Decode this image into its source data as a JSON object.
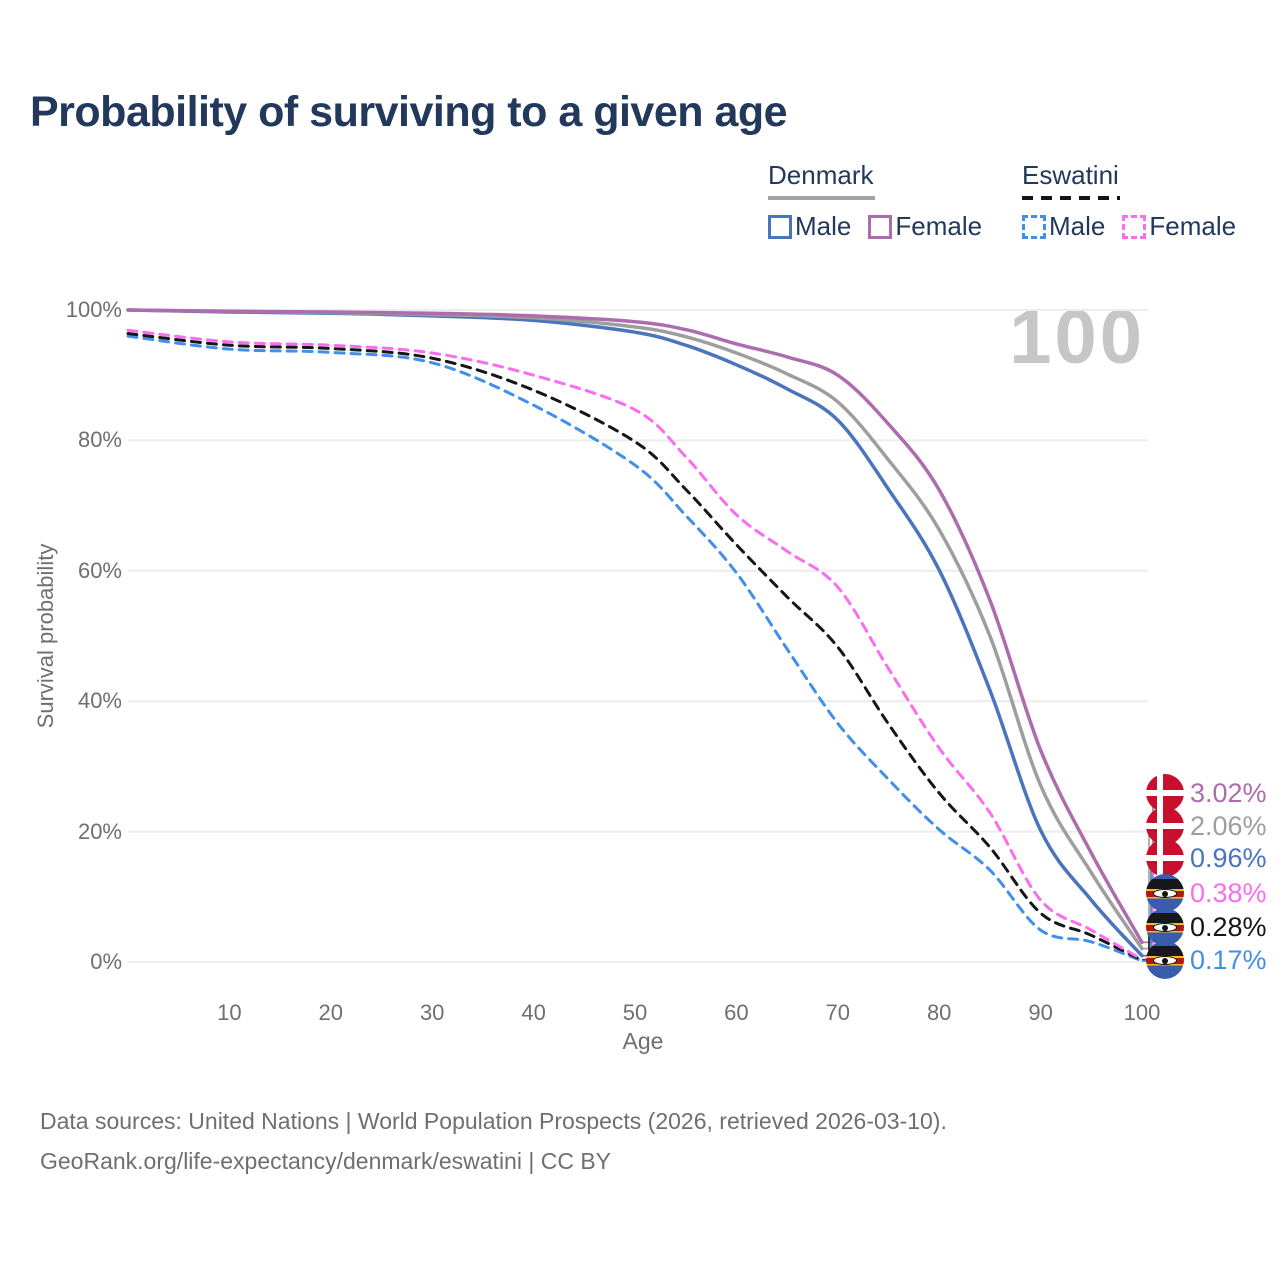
{
  "title": "Probability of surviving to a given age",
  "watermark_age": "100",
  "legend": {
    "groups": [
      {
        "label": "Denmark",
        "line_style": "solid",
        "underline_color": "#a3a3a3",
        "items": [
          {
            "label": "Male",
            "color": "#4a74bc",
            "dashed": false
          },
          {
            "label": "Female",
            "color": "#ad6cae",
            "dashed": false
          }
        ]
      },
      {
        "label": "Eswatini",
        "line_style": "dashed",
        "underline_color": "#141414",
        "items": [
          {
            "label": "Male",
            "color": "#418fea",
            "dashed": true
          },
          {
            "label": "Female",
            "color": "#fb6df0",
            "dashed": true
          }
        ]
      }
    ]
  },
  "chart_data": {
    "type": "line",
    "title": "Probability of surviving to a given age",
    "xlabel": "Age",
    "ylabel": "Survival probability",
    "xlim": [
      0,
      100
    ],
    "ylim": [
      0,
      100
    ],
    "grid": "horizontal",
    "legend_position": "top-right",
    "x_ticks": [
      {
        "age": 10,
        "label": "10"
      },
      {
        "age": 20,
        "label": "20"
      },
      {
        "age": 30,
        "label": "30"
      },
      {
        "age": 40,
        "label": "40"
      },
      {
        "age": 50,
        "label": "50"
      },
      {
        "age": 60,
        "label": "60"
      },
      {
        "age": 70,
        "label": "70"
      },
      {
        "age": 80,
        "label": "80"
      },
      {
        "age": 90,
        "label": "90"
      },
      {
        "age": 100,
        "label": "100"
      }
    ],
    "y_ticks": [
      {
        "pct": 0,
        "label": "0%"
      },
      {
        "pct": 20,
        "label": "20%"
      },
      {
        "pct": 40,
        "label": "40%"
      },
      {
        "pct": 60,
        "label": "60%"
      },
      {
        "pct": 80,
        "label": "80%"
      },
      {
        "pct": 100,
        "label": "100%"
      }
    ],
    "x": [
      0,
      10,
      20,
      30,
      40,
      50,
      55,
      60,
      65,
      70,
      75,
      80,
      85,
      90,
      95,
      100
    ],
    "series": [
      {
        "name": "Denmark Female",
        "country": "Denmark",
        "sex": "Female",
        "color": "#ad6cae",
        "dashed": false,
        "end_label": "3.02%",
        "flag": "denmark",
        "values": [
          100,
          99.8,
          99.7,
          99.5,
          99.1,
          98.2,
          97.0,
          94.8,
          92.8,
          90.0,
          82.5,
          72.4,
          55.5,
          32.5,
          16.7,
          3.02
        ]
      },
      {
        "name": "Denmark Both sexes",
        "country": "Denmark",
        "sex": "Both",
        "color": "#9e9e9e",
        "dashed": false,
        "end_label": "2.06%",
        "flag": "denmark",
        "values": [
          100,
          99.8,
          99.6,
          99.3,
          98.8,
          97.4,
          95.9,
          93.4,
          90.2,
          85.9,
          77.0,
          66.3,
          50.0,
          27.1,
          13.7,
          2.06
        ]
      },
      {
        "name": "Denmark Male",
        "country": "Denmark",
        "sex": "Male",
        "color": "#4a74bc",
        "dashed": false,
        "end_label": "0.96%",
        "flag": "denmark",
        "values": [
          100,
          99.7,
          99.5,
          99.1,
          98.4,
          96.6,
          94.6,
          91.6,
          87.9,
          83.1,
          72.5,
          60.1,
          41.7,
          20.2,
          9.5,
          0.96
        ]
      },
      {
        "name": "Eswatini Female",
        "country": "Eswatini",
        "sex": "Female",
        "color": "#fb6df0",
        "dashed": true,
        "end_label": "0.38%",
        "flag": "eswatini",
        "values": [
          96.9,
          95.1,
          94.6,
          93.4,
          90.0,
          84.7,
          77.5,
          68.6,
          63.0,
          57.5,
          45.0,
          32.8,
          22.9,
          9.5,
          4.9,
          0.38
        ]
      },
      {
        "name": "Eswatini Both sexes",
        "country": "Eswatini",
        "sex": "Both",
        "color": "#161616",
        "dashed": true,
        "end_label": "0.28%",
        "flag": "eswatini",
        "values": [
          96.4,
          94.6,
          94.1,
          92.6,
          87.7,
          79.8,
          72.5,
          64.0,
          56.0,
          48.3,
          36.5,
          25.9,
          17.6,
          7.5,
          4.1,
          0.28
        ]
      },
      {
        "name": "Eswatini Male",
        "country": "Eswatini",
        "sex": "Male",
        "color": "#418fea",
        "dashed": true,
        "end_label": "0.17%",
        "flag": "eswatini",
        "values": [
          96.0,
          94.0,
          93.5,
          91.9,
          85.4,
          76.2,
          68.5,
          59.7,
          48.0,
          36.6,
          28.0,
          20.3,
          14.1,
          4.9,
          3.1,
          0.17
        ]
      }
    ]
  },
  "footer": {
    "line1": "Data sources: United Nations | World Population Prospects (2026, retrieved 2026-03-10).",
    "line2": "GeoRank.org/life-expectancy/denmark/eswatini | CC BY"
  }
}
